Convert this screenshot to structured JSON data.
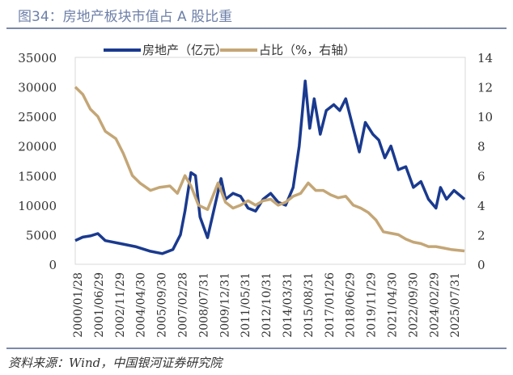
{
  "title": "图34：房地产板块市值占 A 股比重",
  "source": "资料来源：Wind，中国银河证券研究院",
  "chart_data": {
    "type": "line",
    "title": "图34：房地产板块市值占 A 股比重",
    "categories": [
      "2000/01/28",
      "2001/06/29",
      "2002/11/29",
      "2004/04/30",
      "2005/09/30",
      "2007/02/28",
      "2008/07/31",
      "2009/12/31",
      "2011/05/31",
      "2012/10/31",
      "2014/03/31",
      "2015/08/31",
      "2017/01/26",
      "2018/06/29",
      "2019/11/29",
      "2021/04/30",
      "2022/09/30",
      "2024/02/29",
      "2025/07/31"
    ],
    "y_left": {
      "ylim": [
        0,
        35000
      ],
      "ticks": [
        "0",
        "5000",
        "10000",
        "15000",
        "20000",
        "25000",
        "30000",
        "35000"
      ]
    },
    "y_right": {
      "ylim": [
        0,
        14
      ],
      "ticks": [
        "0",
        "2",
        "4",
        "6",
        "8",
        "10",
        "12",
        "14"
      ]
    },
    "legend": "top",
    "series": [
      {
        "name": "房地产（亿元）",
        "axis": "left",
        "color": "#1a3a8f",
        "x": [
          2000,
          2000.5,
          2001,
          2001.5,
          2002,
          2003,
          2004,
          2005,
          2005.8,
          2006.5,
          2007,
          2007.3,
          2007.7,
          2008,
          2008.3,
          2008.8,
          2009.3,
          2009.7,
          2010,
          2010.5,
          2011,
          2011.5,
          2012,
          2012.5,
          2013,
          2013.5,
          2014,
          2014.5,
          2014.9,
          2015.3,
          2015.6,
          2015.9,
          2016.3,
          2016.7,
          2017.2,
          2017.6,
          2018,
          2018.5,
          2018.9,
          2019.3,
          2019.8,
          2020.2,
          2020.6,
          2021,
          2021.5,
          2022,
          2022.5,
          2023,
          2023.5,
          2024,
          2024.3,
          2024.7,
          2025.2,
          2025.9
        ],
        "values": [
          4000,
          4600,
          4800,
          5200,
          4000,
          3500,
          3000,
          2200,
          1800,
          2500,
          5000,
          9000,
          15500,
          15000,
          8000,
          4500,
          10000,
          14500,
          11000,
          12000,
          11500,
          9500,
          9000,
          11000,
          12000,
          10500,
          10000,
          13000,
          20000,
          31000,
          23000,
          28000,
          22000,
          26000,
          27000,
          26000,
          28000,
          23000,
          19000,
          24000,
          22000,
          21000,
          18000,
          20000,
          16000,
          16500,
          13000,
          14000,
          11000,
          9500,
          13000,
          11000,
          12500,
          11000
        ]
      },
      {
        "name": "占比（%，右轴）",
        "axis": "right",
        "color": "#c4a676",
        "x": [
          2000,
          2000.5,
          2001,
          2001.5,
          2002,
          2002.7,
          2003.2,
          2003.8,
          2004.3,
          2005,
          2005.6,
          2006.3,
          2006.8,
          2007.3,
          2007.7,
          2008.2,
          2008.8,
          2009.5,
          2010,
          2010.5,
          2011,
          2011.5,
          2012,
          2012.5,
          2013,
          2013.5,
          2014,
          2014.5,
          2015,
          2015.5,
          2016,
          2016.5,
          2017,
          2017.5,
          2018,
          2018.5,
          2019,
          2019.5,
          2020,
          2020.5,
          2021,
          2021.5,
          2022,
          2022.5,
          2023,
          2023.5,
          2024,
          2024.5,
          2025,
          2025.9
        ],
        "values": [
          12,
          11.5,
          10.5,
          10,
          9,
          8.5,
          7.5,
          6,
          5.5,
          5,
          5.2,
          5.3,
          4.8,
          6,
          5.3,
          4,
          3.7,
          5.5,
          4.2,
          3.8,
          4,
          4.3,
          4,
          4.3,
          4.4,
          4,
          4.2,
          4.6,
          4.8,
          5.5,
          5,
          5,
          4.7,
          4.5,
          4.6,
          4,
          3.8,
          3.5,
          3,
          2.2,
          2.1,
          2,
          1.7,
          1.5,
          1.4,
          1.2,
          1.2,
          1.1,
          1,
          0.9
        ]
      }
    ]
  }
}
